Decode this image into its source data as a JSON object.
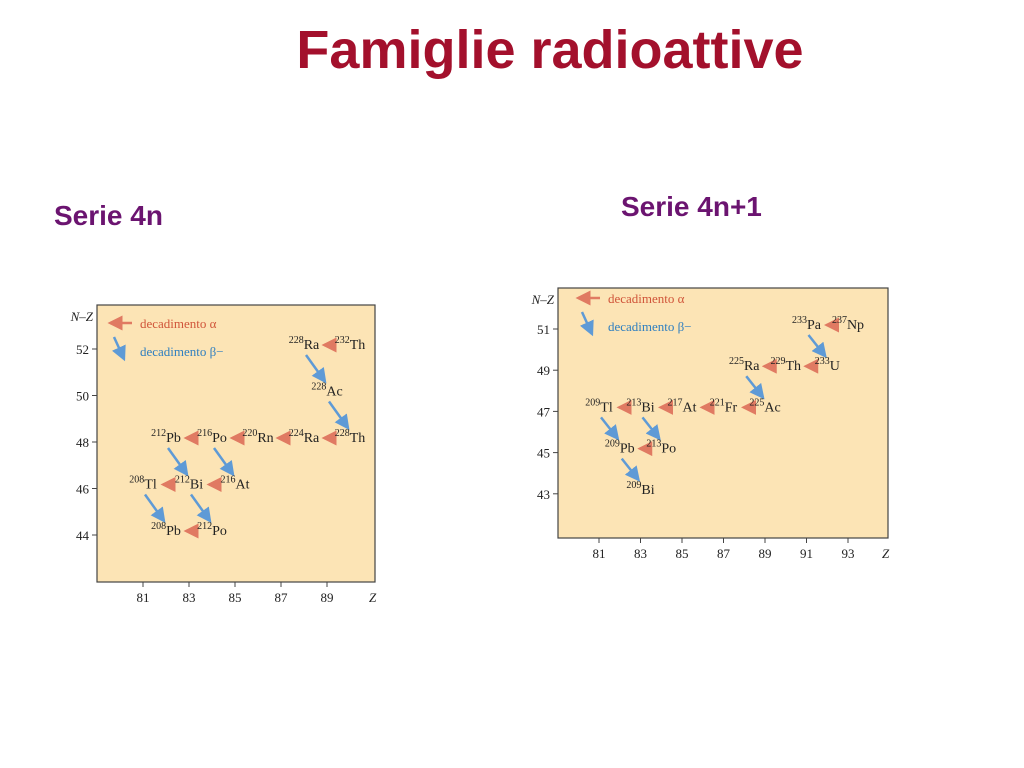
{
  "title": "Famiglie radioattive",
  "panels": [
    {
      "heading": "Serie 4n",
      "y_label": "N–Z",
      "x_label": "Z",
      "legend": {
        "alpha": "decadimento α",
        "beta": "decadimento β−"
      },
      "xticks": [
        81,
        83,
        85,
        87,
        89
      ],
      "yticks": [
        44,
        46,
        48,
        50,
        52
      ],
      "nuclides": [
        {
          "mass": "232",
          "symbol": "Th",
          "z": 90,
          "nz": 52
        },
        {
          "mass": "228",
          "symbol": "Ra",
          "z": 88,
          "nz": 52
        },
        {
          "mass": "228",
          "symbol": "Ac",
          "z": 89,
          "nz": 50
        },
        {
          "mass": "228",
          "symbol": "Th",
          "z": 90,
          "nz": 48
        },
        {
          "mass": "224",
          "symbol": "Ra",
          "z": 88,
          "nz": 48
        },
        {
          "mass": "220",
          "symbol": "Rn",
          "z": 86,
          "nz": 48
        },
        {
          "mass": "216",
          "symbol": "Po",
          "z": 84,
          "nz": 48
        },
        {
          "mass": "212",
          "symbol": "Pb",
          "z": 82,
          "nz": 48
        },
        {
          "mass": "216",
          "symbol": "At",
          "z": 85,
          "nz": 46
        },
        {
          "mass": "212",
          "symbol": "Bi",
          "z": 83,
          "nz": 46
        },
        {
          "mass": "208",
          "symbol": "Tl",
          "z": 81,
          "nz": 46
        },
        {
          "mass": "212",
          "symbol": "Po",
          "z": 84,
          "nz": 44
        },
        {
          "mass": "208",
          "symbol": "Pb",
          "z": 82,
          "nz": 44
        }
      ]
    },
    {
      "heading": "Serie 4n+1",
      "y_label": "N–Z",
      "x_label": "Z",
      "legend": {
        "alpha": "decadimento α",
        "beta": "decadimento β−"
      },
      "xticks": [
        81,
        83,
        85,
        87,
        89,
        91,
        93
      ],
      "yticks": [
        43,
        45,
        47,
        49,
        51
      ],
      "nuclides": [
        {
          "mass": "237",
          "symbol": "Np",
          "z": 93,
          "nz": 51
        },
        {
          "mass": "233",
          "symbol": "Pa",
          "z": 91,
          "nz": 51
        },
        {
          "mass": "233",
          "symbol": "U",
          "z": 92,
          "nz": 49
        },
        {
          "mass": "229",
          "symbol": "Th",
          "z": 90,
          "nz": 49
        },
        {
          "mass": "225",
          "symbol": "Ra",
          "z": 88,
          "nz": 49
        },
        {
          "mass": "225",
          "symbol": "Ac",
          "z": 89,
          "nz": 47
        },
        {
          "mass": "221",
          "symbol": "Fr",
          "z": 87,
          "nz": 47
        },
        {
          "mass": "217",
          "symbol": "At",
          "z": 85,
          "nz": 47
        },
        {
          "mass": "213",
          "symbol": "Bi",
          "z": 83,
          "nz": 47
        },
        {
          "mass": "209",
          "symbol": "Tl",
          "z": 81,
          "nz": 47
        },
        {
          "mass": "213",
          "symbol": "Po",
          "z": 84,
          "nz": 45
        },
        {
          "mass": "209",
          "symbol": "Pb",
          "z": 82,
          "nz": 45
        },
        {
          "mass": "209",
          "symbol": "Bi",
          "z": 83,
          "nz": 43
        }
      ]
    }
  ]
}
